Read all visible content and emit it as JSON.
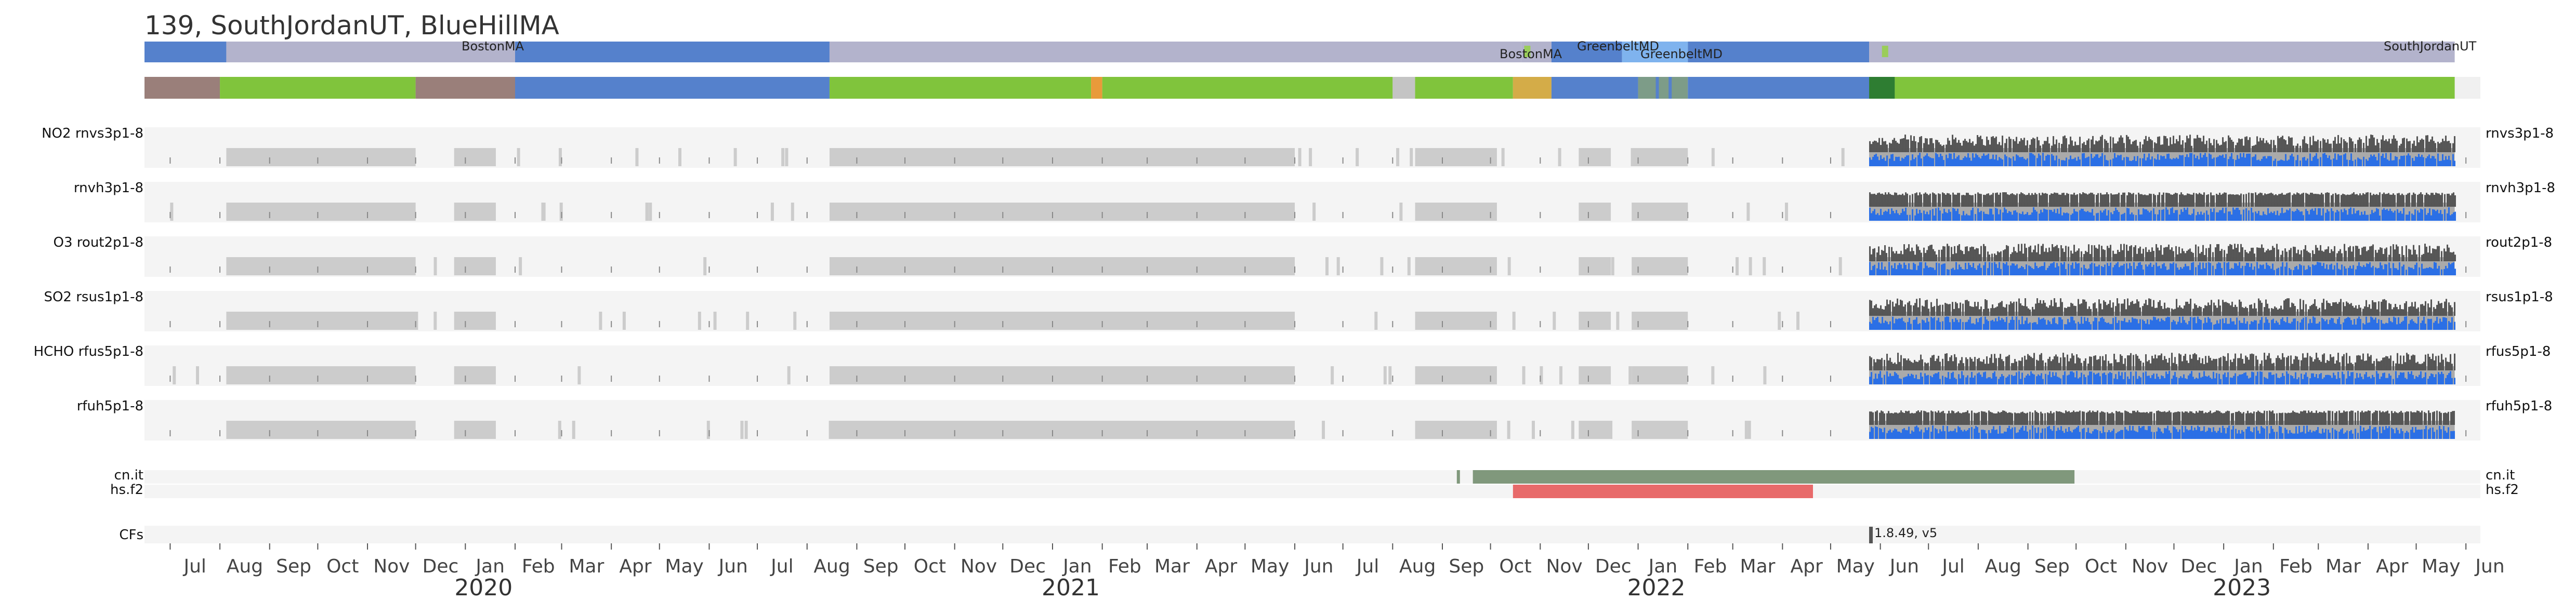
{
  "chart_data": {
    "type": "timeline",
    "title": "139, SouthJordanUT, BlueHillMA",
    "time_range": [
      "2019-06-15",
      "2023-06-10"
    ],
    "location_labels": [
      "BostonMA",
      "BostonMA",
      "GreenbeltMD",
      "GreenbeltMD",
      "SouthJordanUT"
    ],
    "location_bar": [
      {
        "start": "2019-06-15",
        "end": "2019-08-05",
        "color": "#5581cc"
      },
      {
        "start": "2019-08-05",
        "end": "2020-02-01",
        "color": "#b3b3cc"
      },
      {
        "start": "2020-02-01",
        "end": "2020-08-15",
        "color": "#5581cc"
      },
      {
        "start": "2020-08-15",
        "end": "2021-10-20",
        "color": "#b3b3cc"
      },
      {
        "start": "2021-10-20",
        "end": "2021-11-08",
        "color": "#b3b3cc"
      },
      {
        "start": "2021-11-08",
        "end": "2021-12-22",
        "color": "#5581cc"
      },
      {
        "start": "2021-12-22",
        "end": "2022-02-01",
        "color": "#7fb3ee"
      },
      {
        "start": "2022-02-01",
        "end": "2022-05-25",
        "color": "#5581cc"
      },
      {
        "start": "2022-05-25",
        "end": "2023-05-25",
        "color": "#b3b3cc"
      }
    ],
    "location_markers": [
      {
        "date": "2021-10-22",
        "color": "#9acd5a"
      },
      {
        "date": "2022-06-02",
        "color": "#9acd5a"
      }
    ],
    "instrument_bar": [
      {
        "start": "2019-06-15",
        "end": "2019-08-01",
        "color": "#9a7f7a"
      },
      {
        "start": "2019-08-01",
        "end": "2019-12-01",
        "color": "#80c43c"
      },
      {
        "start": "2019-12-01",
        "end": "2020-02-01",
        "color": "#9a7f7a"
      },
      {
        "start": "2020-02-01",
        "end": "2020-08-15",
        "color": "#5581cc"
      },
      {
        "start": "2020-08-15",
        "end": "2021-01-25",
        "color": "#80c43c"
      },
      {
        "start": "2021-01-25",
        "end": "2021-02-01",
        "color": "#e89a3a"
      },
      {
        "start": "2021-02-01",
        "end": "2021-08-01",
        "color": "#80c43c"
      },
      {
        "start": "2021-08-01",
        "end": "2021-08-15",
        "color": "#c4c4c4"
      },
      {
        "start": "2021-08-15",
        "end": "2021-10-15",
        "color": "#80c43c"
      },
      {
        "start": "2021-10-15",
        "end": "2021-11-08",
        "color": "#d4ac48"
      },
      {
        "start": "2021-11-08",
        "end": "2022-01-01",
        "color": "#5581cc"
      },
      {
        "start": "2022-01-01",
        "end": "2022-02-01",
        "color": "#7d9c88"
      },
      {
        "start": "2022-02-01",
        "end": "2022-05-25",
        "color": "#5581cc"
      },
      {
        "start": "2022-05-25",
        "end": "2022-06-10",
        "color": "#2e7d32"
      },
      {
        "start": "2022-06-10",
        "end": "2023-05-25",
        "color": "#80c43c"
      }
    ],
    "products": [
      {
        "left_label": "NO2  rnvs3p1-8",
        "right_label": "rnvs3p1-8"
      },
      {
        "left_label": "rnvh3p1-8",
        "right_label": "rnvh3p1-8"
      },
      {
        "left_label": "O3  rout2p1-8",
        "right_label": "rout2p1-8"
      },
      {
        "left_label": "SO2  rsus1p1-8",
        "right_label": "rsus1p1-8"
      },
      {
        "left_label": "HCHO  rfus5p1-8",
        "right_label": "rfus5p1-8"
      },
      {
        "left_label": "rfuh5p1-8",
        "right_label": "rfuh5p1-8"
      }
    ],
    "gray_availability": [
      {
        "start": "2019-08-05",
        "end": "2019-12-01"
      },
      {
        "start": "2019-12-25",
        "end": "2020-01-20"
      },
      {
        "start": "2020-08-15",
        "end": "2021-06-01"
      },
      {
        "start": "2021-08-15",
        "end": "2021-10-05"
      },
      {
        "start": "2021-11-25",
        "end": "2021-12-15"
      },
      {
        "start": "2021-12-28",
        "end": "2022-02-01"
      }
    ],
    "processed_period": {
      "start": "2022-05-25",
      "end": "2023-05-25"
    },
    "flags": [
      {
        "label": "cn.it",
        "right_label": "cn.it",
        "start": "2021-09-20",
        "end": "2022-09-30",
        "color": "#80987c"
      },
      {
        "label": "hs.f2",
        "right_label": "hs.f2",
        "start": "2021-10-15",
        "end": "2022-04-20",
        "color": "#e86a6a"
      }
    ],
    "cfs": {
      "label": "CFs",
      "version": "1.8.49, v5",
      "date": "2022-05-25"
    },
    "x_months": [
      "Jul",
      "Aug",
      "Sep",
      "Oct",
      "Nov",
      "Dec",
      "Jan",
      "Feb",
      "Mar",
      "Apr",
      "May",
      "Jun",
      "Jul",
      "Aug",
      "Sep",
      "Oct",
      "Nov",
      "Dec",
      "Jan",
      "Feb",
      "Mar",
      "Apr",
      "May",
      "Jun",
      "Jul",
      "Aug",
      "Sep",
      "Oct",
      "Nov",
      "Dec",
      "Jan",
      "Feb",
      "Mar",
      "Apr",
      "May",
      "Jun",
      "Jul",
      "Aug",
      "Sep",
      "Oct",
      "Nov",
      "Dec",
      "Jan",
      "Feb",
      "Mar",
      "Apr",
      "May",
      "Jun"
    ],
    "x_years": [
      "2020",
      "2021",
      "2022",
      "2023"
    ]
  }
}
